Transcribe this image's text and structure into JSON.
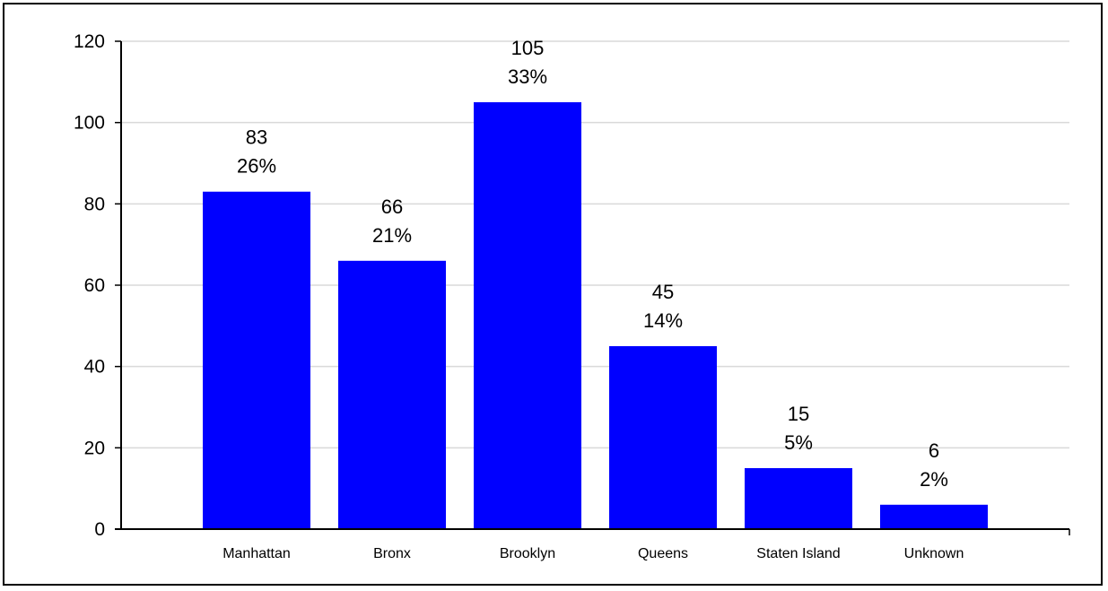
{
  "chart_data": {
    "type": "bar",
    "categories": [
      "Manhattan",
      "Bronx",
      "Brooklyn",
      "Queens",
      "Staten Island",
      "Unknown"
    ],
    "values": [
      83,
      66,
      105,
      45,
      15,
      6
    ],
    "percent_labels": [
      "26%",
      "21%",
      "33%",
      "14%",
      "5%",
      "2%"
    ],
    "title": "",
    "xlabel": "",
    "ylabel": "",
    "ylim": [
      0,
      120
    ],
    "yticks": [
      0,
      20,
      40,
      60,
      80,
      100,
      120
    ],
    "grid": true,
    "legend": "none",
    "colors": {
      "bar": "#0000ff",
      "grid": "#d9d9d9",
      "axis": "#000000"
    }
  }
}
